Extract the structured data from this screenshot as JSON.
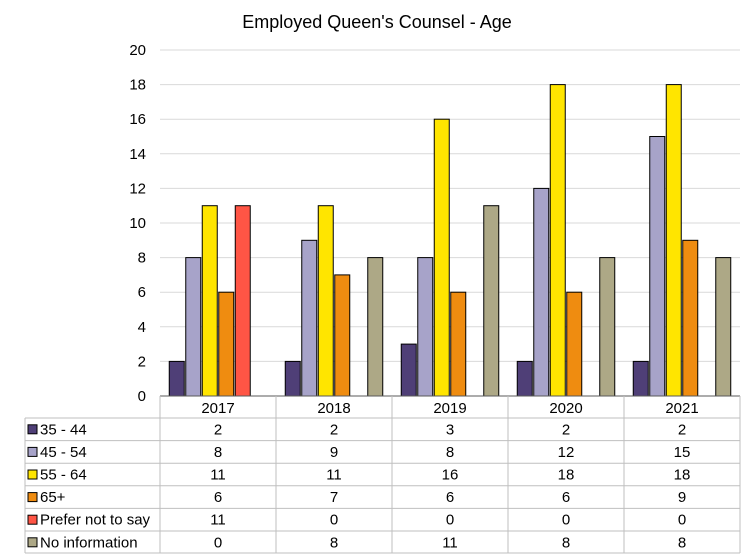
{
  "chart_data": {
    "type": "bar",
    "title": "Employed Queen's Counsel - Age",
    "xlabel": "",
    "ylabel": "",
    "ylim": [
      0,
      20
    ],
    "yticks": [
      0,
      2,
      4,
      6,
      8,
      10,
      12,
      14,
      16,
      18,
      20
    ],
    "grid": true,
    "legend": "data-table-below",
    "categories": [
      "2017",
      "2018",
      "2019",
      "2020",
      "2021"
    ],
    "series": [
      {
        "name": "35 - 44",
        "color": "#4f3f77",
        "values": [
          2,
          2,
          3,
          2,
          2
        ]
      },
      {
        "name": "45 - 54",
        "color": "#a7a3c9",
        "values": [
          8,
          9,
          8,
          12,
          15
        ]
      },
      {
        "name": "55 - 64",
        "color": "#ffe500",
        "values": [
          11,
          11,
          16,
          18,
          18
        ]
      },
      {
        "name": "65+",
        "color": "#ef8c10",
        "values": [
          6,
          7,
          6,
          6,
          9
        ]
      },
      {
        "name": "Prefer not to say",
        "color": "#ff5545",
        "values": [
          11,
          0,
          0,
          0,
          0
        ]
      },
      {
        "name": "No information",
        "color": "#ada886",
        "values": [
          0,
          8,
          11,
          8,
          8
        ]
      }
    ]
  }
}
